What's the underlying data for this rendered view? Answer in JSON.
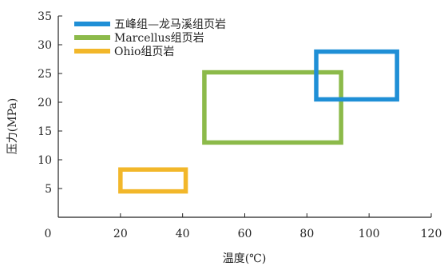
{
  "chart_data": {
    "type": "scatter",
    "title": "",
    "xlabel": "温度(℃)",
    "ylabel": "压力(MPa)",
    "xlim": [
      0,
      120
    ],
    "ylim": [
      0,
      35
    ],
    "xticks": [
      0,
      20,
      40,
      60,
      80,
      100,
      120
    ],
    "yticks": [
      5,
      10,
      15,
      20,
      25,
      30,
      35
    ],
    "grid": false,
    "legend_position": "top-left",
    "series": [
      {
        "name": "五峰组—龙马溪组页岩",
        "color": "#1f8fd6",
        "x_range": [
          83,
          109
        ],
        "y_range": [
          20.5,
          28.8
        ]
      },
      {
        "name": "Marcellus组页岩",
        "color": "#8cba4a",
        "x_range": [
          47,
          91
        ],
        "y_range": [
          13,
          25.2
        ]
      },
      {
        "name": "Ohio组页岩",
        "color": "#f2b72a",
        "x_range": [
          20,
          41
        ],
        "y_range": [
          4.5,
          8.3
        ]
      }
    ]
  }
}
